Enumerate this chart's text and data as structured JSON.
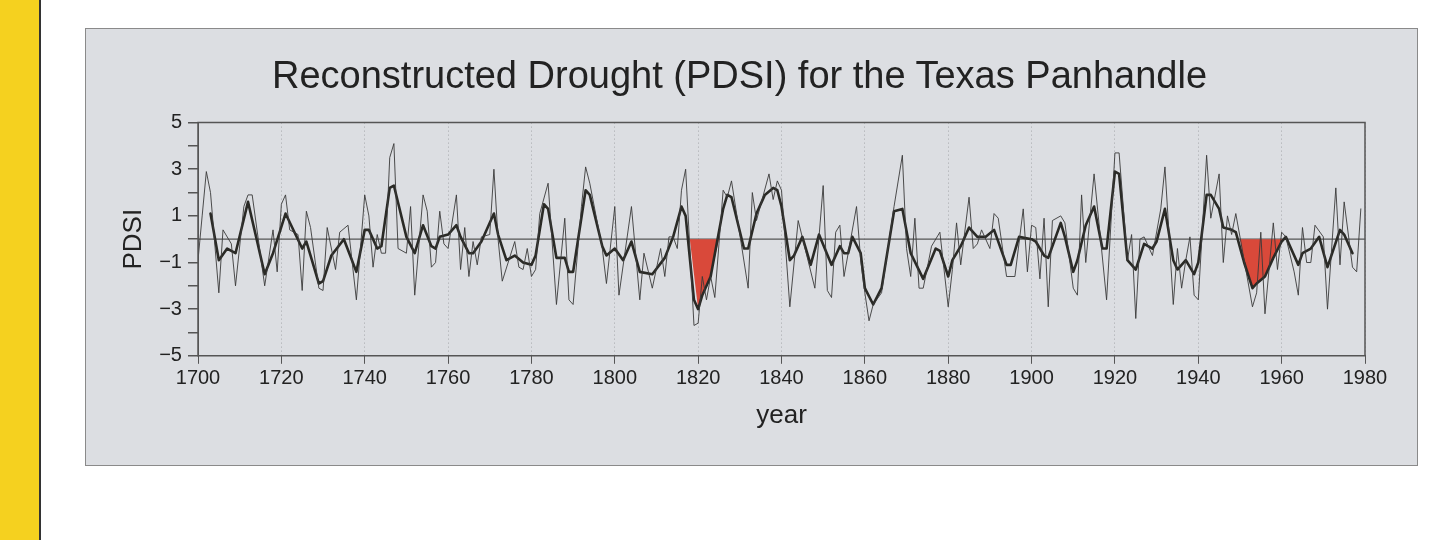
{
  "chart_data": {
    "type": "line",
    "title": "Reconstructed Drought (PDSI) for the Texas Panhandle",
    "xlabel": "year",
    "ylabel": "PDSI",
    "xlim": [
      1700,
      1980
    ],
    "xticks": [
      1700,
      1720,
      1740,
      1760,
      1780,
      1800,
      1820,
      1840,
      1860,
      1880,
      1900,
      1920,
      1940,
      1960,
      1980
    ],
    "ylim": [
      -5,
      5
    ],
    "yticks": [
      -5,
      {
        "value": -4,
        "label": null
      },
      -3,
      {
        "value": -2,
        "label": null
      },
      -1,
      {
        "value": 0,
        "label": null
      },
      1,
      {
        "value": 2,
        "label": null
      },
      3,
      {
        "value": 4,
        "label": null
      },
      5
    ],
    "grid": "x",
    "legend": false,
    "ref_lines": [
      {
        "axis": "y",
        "value": 0,
        "color": "#555555"
      }
    ],
    "series": [
      {
        "type": "line",
        "color": "#3a3a3a",
        "x": [
          1700,
          1701,
          1702,
          1703,
          1705,
          1706,
          1708,
          1709,
          1711,
          1712,
          1713,
          1716,
          1718,
          1719,
          1720,
          1721,
          1722,
          1724,
          1725,
          1726,
          1727,
          1729,
          1730,
          1731,
          1733,
          1734,
          1736,
          1738,
          1740,
          1741,
          1742,
          1743,
          1744,
          1745,
          1746,
          1747,
          1748,
          1750,
          1751,
          1752,
          1754,
          1755,
          1756,
          1757,
          1758,
          1759,
          1760,
          1762,
          1763,
          1764,
          1765,
          1766,
          1767,
          1768,
          1770,
          1771,
          1772,
          1773,
          1776,
          1777,
          1778,
          1779,
          1780,
          1781,
          1782,
          1784,
          1786,
          1788,
          1789,
          1790,
          1792,
          1793,
          1794,
          1797,
          1798,
          1800,
          1801,
          1804,
          1806,
          1807,
          1809,
          1811,
          1812,
          1813,
          1814,
          1815,
          1816,
          1817,
          1819,
          1820,
          1821,
          1822,
          1823,
          1824,
          1826,
          1827,
          1828,
          1832,
          1833,
          1834,
          1837,
          1838,
          1839,
          1840,
          1842,
          1844,
          1848,
          1850,
          1851,
          1852,
          1853,
          1854,
          1855,
          1858,
          1859,
          1860,
          1861,
          1862,
          1864,
          1867,
          1869,
          1870,
          1871,
          1872,
          1873,
          1874,
          1876,
          1878,
          1880,
          1881,
          1882,
          1883,
          1885,
          1886,
          1887,
          1888,
          1890,
          1891,
          1892,
          1894,
          1896,
          1898,
          1899,
          1900,
          1901,
          1902,
          1903,
          1904,
          1905,
          1907,
          1908,
          1910,
          1911,
          1912,
          1913,
          1915,
          1918,
          1920,
          1921,
          1923,
          1924,
          1925,
          1926,
          1927,
          1929,
          1931,
          1932,
          1934,
          1935,
          1936,
          1937,
          1938,
          1939,
          1940,
          1942,
          1943,
          1945,
          1946,
          1947,
          1948,
          1949,
          1953,
          1954,
          1955,
          1956,
          1958,
          1959,
          1960,
          1961,
          1963,
          1964,
          1965,
          1966,
          1967,
          1968,
          1970,
          1971,
          1973,
          1974,
          1975,
          1977,
          1978,
          1979
        ],
        "values": [
          -0.9,
          1.0,
          2.9,
          2.0,
          -2.3,
          0.4,
          -0.2,
          -2.0,
          1.4,
          1.9,
          1.9,
          -2.0,
          0.4,
          -1.4,
          1.5,
          1.9,
          0.4,
          0.2,
          -2.2,
          1.2,
          0.5,
          -2.1,
          -2.2,
          0.5,
          -1.3,
          0.3,
          0.6,
          -2.6,
          1.9,
          1.0,
          -1.2,
          0.2,
          -0.6,
          -0.6,
          3.5,
          4.1,
          -0.4,
          -0.6,
          1.4,
          -2.4,
          1.9,
          1.2,
          -1.2,
          -1.0,
          1.2,
          -0.2,
          -0.4,
          1.9,
          -1.3,
          0.5,
          -1.6,
          -0.1,
          -1.1,
          0.1,
          0.2,
          3.0,
          0,
          -1.8,
          -0.1,
          -1.2,
          -1.3,
          -0.4,
          -1.6,
          -1.3,
          1.1,
          2.4,
          -2.8,
          0.9,
          -2.6,
          -2.8,
          1.4,
          3.1,
          2.4,
          -0.4,
          -1.9,
          1.4,
          -2.4,
          1.4,
          -2.6,
          -0.6,
          -2.1,
          -0.4,
          -1.6,
          0.1,
          0.1,
          -0.4,
          2.1,
          3.0,
          -3.7,
          -3.6,
          -1.6,
          -2.6,
          -1.6,
          -2.5,
          2.1,
          1.8,
          2.5,
          -2.1,
          2.0,
          0.8,
          2.8,
          1.7,
          2.5,
          2.1,
          -2.9,
          0.8,
          -2.1,
          2.3,
          -2.2,
          -2.5,
          0.3,
          0.6,
          -1.6,
          1.4,
          -0.9,
          -2.3,
          -3.5,
          -2.8,
          -2.3,
          1.4,
          3.6,
          -0.4,
          -1.6,
          0.9,
          -2.1,
          -2.1,
          -0.3,
          0.3,
          -2.9,
          -1.3,
          0.7,
          -1.1,
          1.8,
          -0.4,
          -0.2,
          0.4,
          -0.4,
          1.1,
          0.9,
          -1.6,
          -1.6,
          1.3,
          -1.4,
          0.6,
          0.5,
          -1.7,
          0.9,
          -2.9,
          0.8,
          1.0,
          0.7,
          -2.1,
          -2.4,
          1.9,
          -1.0,
          2.8,
          -2.6,
          3.7,
          3.7,
          -0.9,
          0.2,
          -3.4,
          0,
          0.1,
          -0.7,
          1.3,
          3.1,
          -2.8,
          -0.4,
          -2.1,
          -0.9,
          0.1,
          -2.4,
          -2.6,
          3.6,
          0.9,
          2.8,
          -1.0,
          1.0,
          0.2,
          1.1,
          -2.9,
          -2.3,
          0.3,
          -3.2,
          0.7,
          -1.3,
          0.3,
          0.1,
          -1.4,
          -2.4,
          0.5,
          -1.0,
          -1.0,
          0.6,
          0.1,
          -3.0,
          2.2,
          -1.1,
          1.6,
          -1.2,
          -1.4,
          1.3
        ]
      },
      {
        "type": "line",
        "color": "#2a2a26",
        "x": [
          1703,
          1705,
          1707,
          1709,
          1712,
          1716,
          1718,
          1721,
          1725,
          1726,
          1729,
          1730,
          1732,
          1735,
          1738,
          1740,
          1741,
          1743,
          1744,
          1746,
          1747,
          1750,
          1752,
          1754,
          1756,
          1757,
          1758,
          1760,
          1762,
          1763,
          1765,
          1766,
          1768,
          1771,
          1772,
          1774,
          1776,
          1778,
          1780,
          1781,
          1783,
          1784,
          1786,
          1788,
          1789,
          1790,
          1793,
          1794,
          1797,
          1798,
          1800,
          1802,
          1804,
          1806,
          1809,
          1812,
          1814,
          1816,
          1817,
          1819,
          1820,
          1821,
          1823,
          1826,
          1827,
          1828,
          1831,
          1832,
          1834,
          1836,
          1838,
          1839,
          1840,
          1842,
          1843,
          1845,
          1847,
          1849,
          1852,
          1854,
          1855,
          1856,
          1857,
          1859,
          1860,
          1862,
          1864,
          1867,
          1869,
          1871,
          1874,
          1877,
          1878,
          1880,
          1881,
          1883,
          1885,
          1887,
          1889,
          1891,
          1894,
          1895,
          1897,
          1900,
          1901,
          1903,
          1904,
          1907,
          1908,
          1910,
          1911,
          1913,
          1915,
          1917,
          1918,
          1920,
          1921,
          1923,
          1925,
          1927,
          1929,
          1930,
          1932,
          1934,
          1935,
          1937,
          1939,
          1940,
          1942,
          1943,
          1945,
          1946,
          1948,
          1949,
          1951,
          1953,
          1954,
          1956,
          1958,
          1960,
          1961,
          1964,
          1965,
          1967,
          1969,
          1971,
          1974,
          1975,
          1977
        ],
        "values": [
          1.1,
          -0.9,
          -0.4,
          -0.6,
          1.6,
          -1.5,
          -0.6,
          1.1,
          -0.4,
          -0.1,
          -1.9,
          -1.8,
          -0.7,
          0,
          -1.4,
          0.4,
          0.4,
          -0.4,
          -0.3,
          2.2,
          2.3,
          0.1,
          -0.6,
          0.6,
          -0.3,
          -0.4,
          0.1,
          0.2,
          0.6,
          0.1,
          -0.6,
          -0.6,
          -0.1,
          1.1,
          0.2,
          -0.9,
          -0.7,
          -1.0,
          -1.1,
          -0.7,
          1.5,
          1.3,
          -0.8,
          -0.8,
          -1.4,
          -1.4,
          2.1,
          1.9,
          -0.3,
          -0.7,
          -0.4,
          -0.9,
          -0.1,
          -1.4,
          -1.5,
          -0.8,
          0.1,
          1.4,
          1.0,
          -2.6,
          -3.0,
          -2.4,
          -1.6,
          1.3,
          1.9,
          1.8,
          -0.4,
          -0.4,
          1.1,
          1.9,
          2.2,
          2.1,
          1.4,
          -0.9,
          -0.7,
          0.1,
          -1.1,
          0.2,
          -1.1,
          -0.3,
          -0.6,
          -0.6,
          0.1,
          -0.6,
          -2.1,
          -2.8,
          -2.1,
          1.2,
          1.3,
          -0.6,
          -1.7,
          -0.4,
          -0.5,
          -1.6,
          -0.9,
          -0.3,
          0.5,
          0.1,
          0.1,
          0.4,
          -1.1,
          -1.1,
          0.1,
          0,
          -0.1,
          -0.7,
          -0.8,
          0.7,
          0.1,
          -1.4,
          -0.9,
          0.6,
          1.4,
          -0.4,
          -0.4,
          2.9,
          2.8,
          -0.9,
          -1.3,
          -0.2,
          -0.4,
          -0.1,
          1.3,
          -0.9,
          -1.3,
          -0.9,
          -1.5,
          -1.0,
          1.9,
          1.9,
          1.3,
          0.5,
          0.4,
          0.3,
          -1.0,
          -2.1,
          -1.9,
          -1.6,
          -0.8,
          -0.1,
          0.1,
          -1.1,
          -0.6,
          -0.4,
          0.1,
          -1.2,
          0.4,
          0.2,
          -0.6
        ]
      },
      {
        "type": "area",
        "color": "#d9493a",
        "x": [
          1818,
          1820,
          1821,
          1823,
          1825
        ],
        "values": [
          0,
          -3.0,
          -2.4,
          -1.6,
          0
        ]
      },
      {
        "type": "area",
        "color": "#d9493a",
        "x": [
          1950,
          1951,
          1953,
          1954,
          1956,
          1958,
          1960,
          1961
        ],
        "values": [
          0,
          -1.0,
          -2.1,
          -1.9,
          -1.6,
          -0.8,
          -0.1,
          0
        ]
      }
    ]
  }
}
